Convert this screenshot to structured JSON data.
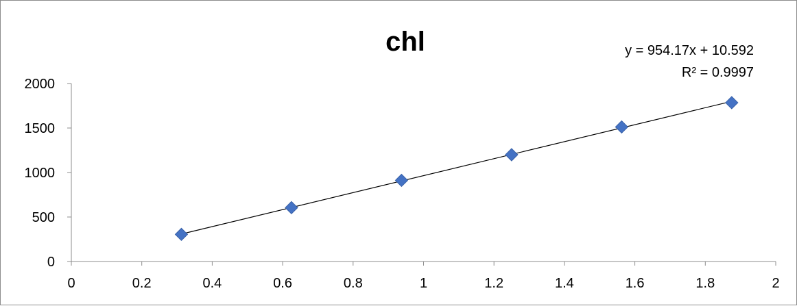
{
  "chart_data": {
    "type": "scatter",
    "title": "chl",
    "xlabel": "",
    "ylabel": "",
    "xlim": [
      0,
      2
    ],
    "ylim": [
      0,
      2000
    ],
    "x_ticks": [
      "0",
      "0.2",
      "0.4",
      "0.6",
      "0.8",
      "1",
      "1.2",
      "1.4",
      "1.6",
      "1.8",
      "2"
    ],
    "y_ticks": [
      "0",
      "500",
      "1000",
      "1500",
      "2000"
    ],
    "grid": false,
    "legend": "none",
    "series": [
      {
        "color": "#4472C4",
        "marker": "diamond",
        "points": [
          {
            "x": 0.3125,
            "y": 305
          },
          {
            "x": 0.625,
            "y": 605
          },
          {
            "x": 0.9375,
            "y": 912
          },
          {
            "x": 1.25,
            "y": 1200
          },
          {
            "x": 1.5625,
            "y": 1512
          },
          {
            "x": 1.875,
            "y": 1785
          }
        ]
      }
    ],
    "trendline": {
      "type": "linear",
      "slope": 954.17,
      "intercept": 10.592,
      "x_range": [
        0.3125,
        1.875
      ],
      "color": "#000000",
      "equation_label": "y = 954.17x + 10.592",
      "r2_label": "R² = 0.9997"
    }
  }
}
